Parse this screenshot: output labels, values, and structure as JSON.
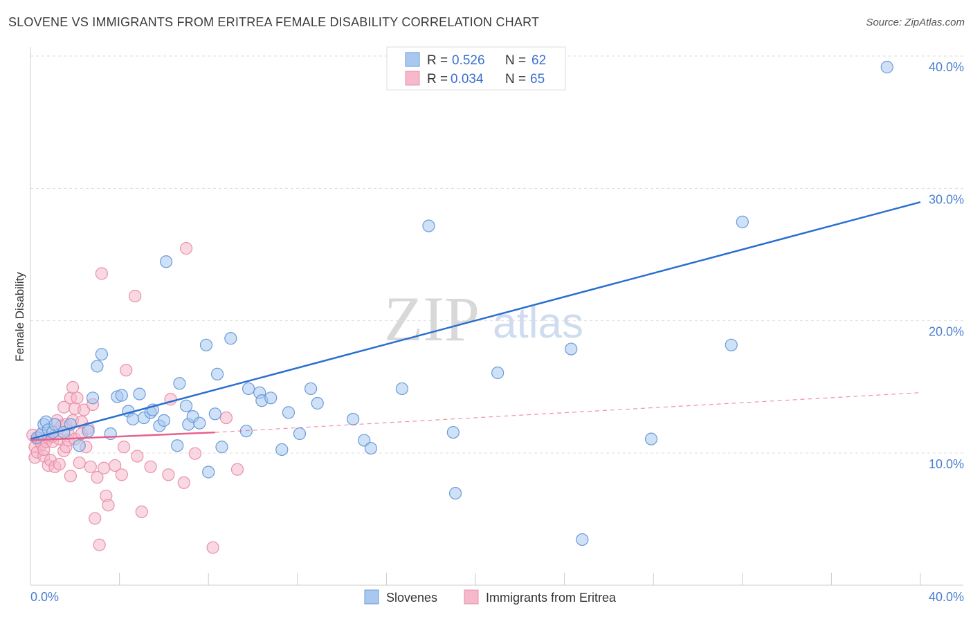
{
  "header": {
    "title": "SLOVENE VS IMMIGRANTS FROM ERITREA FEMALE DISABILITY CORRELATION CHART",
    "source": "Source: ZipAtlas.com"
  },
  "watermark": {
    "zip": "ZIP",
    "atlas": "atlas"
  },
  "legend": {
    "r_label": "R =",
    "n_label": "N =",
    "rows": [
      {
        "name": "Slovenes",
        "r": "0.526",
        "n": "62"
      },
      {
        "name": "Immigrants from Eritrea",
        "r": "0.034",
        "n": "65"
      }
    ]
  },
  "colors": {
    "blue_fill": "#a8c8f0",
    "blue_stroke": "#6a9ad8",
    "blue_line": "#2a6fd0",
    "pink_fill": "#f6b8cb",
    "pink_stroke": "#e890ab",
    "pink_line": "#e8608a",
    "grid": "#dddddd",
    "axis_text": "#4a7fd0"
  },
  "chart_data": {
    "type": "scatter",
    "title": "SLOVENE VS IMMIGRANTS FROM ERITREA FEMALE DISABILITY CORRELATION CHART",
    "xlabel": "",
    "ylabel": "Female Disability",
    "xlim": [
      0,
      40
    ],
    "ylim": [
      0,
      42
    ],
    "x_tick_labels": [
      "0.0%",
      "40.0%"
    ],
    "y_ticks": [
      10,
      20,
      30,
      40
    ],
    "y_tick_labels": [
      "10.0%",
      "20.0%",
      "30.0%",
      "40.0%"
    ],
    "grid": true,
    "legend_position": "top-center",
    "series": [
      {
        "name": "Slovenes",
        "r": 0.526,
        "n": 62,
        "trend": {
          "x": [
            0.0,
            40.0
          ],
          "y": [
            11.9,
            29.8
          ],
          "style": "solid"
        },
        "points": [
          [
            0.3,
            12.0
          ],
          [
            0.5,
            12.3
          ],
          [
            0.6,
            13.0
          ],
          [
            0.7,
            13.2
          ],
          [
            0.8,
            12.6
          ],
          [
            1.0,
            12.4
          ],
          [
            1.1,
            13.0
          ],
          [
            1.5,
            12.4
          ],
          [
            1.8,
            13.0
          ],
          [
            2.2,
            11.4
          ],
          [
            2.6,
            12.5
          ],
          [
            2.8,
            15.0
          ],
          [
            3.0,
            17.4
          ],
          [
            3.2,
            18.3
          ],
          [
            3.6,
            12.3
          ],
          [
            3.9,
            15.1
          ],
          [
            4.1,
            15.2
          ],
          [
            4.4,
            14.0
          ],
          [
            4.6,
            13.4
          ],
          [
            4.9,
            15.3
          ],
          [
            5.1,
            13.5
          ],
          [
            5.4,
            13.9
          ],
          [
            5.5,
            14.1
          ],
          [
            5.8,
            12.9
          ],
          [
            6.0,
            13.3
          ],
          [
            6.1,
            25.3
          ],
          [
            6.6,
            11.4
          ],
          [
            6.7,
            16.1
          ],
          [
            7.0,
            14.4
          ],
          [
            7.1,
            13.0
          ],
          [
            7.3,
            13.6
          ],
          [
            7.6,
            13.1
          ],
          [
            7.9,
            19.0
          ],
          [
            8.0,
            9.4
          ],
          [
            8.3,
            13.8
          ],
          [
            8.4,
            16.8
          ],
          [
            8.6,
            11.3
          ],
          [
            9.0,
            19.5
          ],
          [
            9.7,
            12.5
          ],
          [
            9.8,
            15.7
          ],
          [
            10.3,
            15.4
          ],
          [
            10.4,
            14.8
          ],
          [
            10.8,
            15.0
          ],
          [
            11.3,
            11.1
          ],
          [
            11.6,
            13.9
          ],
          [
            12.1,
            12.3
          ],
          [
            12.6,
            15.7
          ],
          [
            12.9,
            14.6
          ],
          [
            14.5,
            13.4
          ],
          [
            15.0,
            11.8
          ],
          [
            15.3,
            11.2
          ],
          [
            16.7,
            15.7
          ],
          [
            17.9,
            28.0
          ],
          [
            19.0,
            12.4
          ],
          [
            19.1,
            7.8
          ],
          [
            21.0,
            16.9
          ],
          [
            24.3,
            18.7
          ],
          [
            24.8,
            4.3
          ],
          [
            27.9,
            11.9
          ],
          [
            31.5,
            19.0
          ],
          [
            32.0,
            28.3
          ],
          [
            38.5,
            40.0
          ]
        ]
      },
      {
        "name": "Immigrants from Eritrea",
        "r": 0.034,
        "n": 65,
        "trend": {
          "x": [
            0.0,
            8.3
          ],
          "y": [
            11.8,
            12.4
          ],
          "style": "solid",
          "dashed_extension": {
            "x": [
              8.3,
              40.0
            ],
            "y": [
              12.4,
              15.4
            ]
          }
        },
        "points": [
          [
            0.1,
            12.2
          ],
          [
            0.2,
            11.3
          ],
          [
            0.2,
            10.5
          ],
          [
            0.3,
            11.9
          ],
          [
            0.3,
            10.9
          ],
          [
            0.4,
            12.0
          ],
          [
            0.5,
            11.5
          ],
          [
            0.5,
            12.2
          ],
          [
            0.6,
            10.6
          ],
          [
            0.6,
            11.1
          ],
          [
            0.7,
            11.7
          ],
          [
            0.8,
            12.0
          ],
          [
            0.8,
            9.9
          ],
          [
            0.9,
            10.3
          ],
          [
            1.0,
            11.7
          ],
          [
            1.0,
            12.1
          ],
          [
            1.1,
            9.8
          ],
          [
            1.2,
            13.3
          ],
          [
            1.3,
            11.9
          ],
          [
            1.3,
            10.0
          ],
          [
            1.4,
            12.9
          ],
          [
            1.5,
            11.0
          ],
          [
            1.5,
            14.3
          ],
          [
            1.6,
            11.3
          ],
          [
            1.6,
            13.0
          ],
          [
            1.7,
            12.3
          ],
          [
            1.7,
            11.8
          ],
          [
            1.8,
            15.0
          ],
          [
            1.8,
            9.1
          ],
          [
            1.9,
            13.3
          ],
          [
            1.9,
            15.8
          ],
          [
            2.0,
            11.9
          ],
          [
            2.0,
            14.2
          ],
          [
            2.1,
            15.0
          ],
          [
            2.2,
            10.1
          ],
          [
            2.3,
            12.3
          ],
          [
            2.3,
            13.2
          ],
          [
            2.4,
            14.1
          ],
          [
            2.5,
            11.3
          ],
          [
            2.6,
            12.7
          ],
          [
            2.7,
            9.8
          ],
          [
            2.8,
            14.5
          ],
          [
            2.9,
            5.9
          ],
          [
            3.0,
            9.0
          ],
          [
            3.1,
            3.9
          ],
          [
            3.2,
            24.4
          ],
          [
            3.3,
            9.7
          ],
          [
            3.4,
            7.6
          ],
          [
            3.5,
            6.9
          ],
          [
            3.8,
            9.9
          ],
          [
            4.1,
            9.2
          ],
          [
            4.2,
            11.3
          ],
          [
            4.3,
            17.1
          ],
          [
            4.7,
            22.7
          ],
          [
            4.8,
            10.6
          ],
          [
            5.0,
            6.4
          ],
          [
            5.4,
            9.8
          ],
          [
            6.2,
            9.2
          ],
          [
            6.3,
            14.9
          ],
          [
            6.9,
            8.6
          ],
          [
            7.0,
            26.3
          ],
          [
            7.4,
            10.8
          ],
          [
            8.2,
            3.7
          ],
          [
            8.8,
            13.5
          ],
          [
            9.3,
            9.6
          ]
        ]
      }
    ]
  }
}
